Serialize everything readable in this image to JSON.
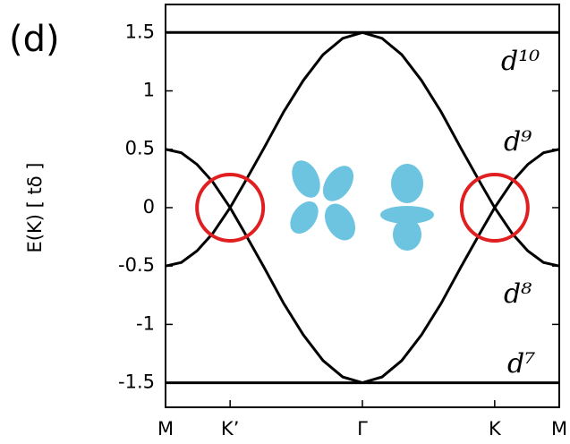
{
  "chart_data": {
    "type": "line",
    "panel_label": "(d)",
    "y_label": "E(K) [ tδ ]",
    "xlim": [
      0,
      1
    ],
    "ylim": [
      -1.71,
      1.74
    ],
    "xticks": [
      {
        "value": 0,
        "label": "M"
      },
      {
        "value": 0.164,
        "label": "K’"
      },
      {
        "value": 0.5,
        "label": "Γ"
      },
      {
        "value": 0.836,
        "label": "K"
      },
      {
        "value": 1,
        "label": "M"
      }
    ],
    "yticks": [
      {
        "value": 1.5,
        "label": "1.5"
      },
      1,
      0.5,
      0,
      -0.5,
      -1,
      -1.5
    ],
    "line_color": "#000000",
    "series": [
      {
        "x": [
          0,
          1
        ],
        "values": [
          1.5,
          1.5
        ]
      },
      {
        "x": [
          0,
          0.04,
          0.08,
          0.12,
          0.164,
          0.2,
          0.25,
          0.3,
          0.35,
          0.4,
          0.45,
          0.5,
          0.55,
          0.6,
          0.65,
          0.7,
          0.75,
          0.8,
          0.836,
          0.88,
          0.92,
          0.96,
          1
        ],
        "values": [
          -0.5,
          -0.47,
          -0.37,
          -0.22,
          0,
          0.21,
          0.51,
          0.82,
          1.09,
          1.31,
          1.45,
          1.5,
          1.45,
          1.31,
          1.09,
          0.82,
          0.51,
          0.21,
          0,
          -0.22,
          -0.37,
          -0.47,
          -0.5
        ]
      },
      {
        "x": [
          0,
          0.04,
          0.08,
          0.12,
          0.164,
          0.2,
          0.25,
          0.3,
          0.35,
          0.4,
          0.45,
          0.5,
          0.55,
          0.6,
          0.65,
          0.7,
          0.75,
          0.8,
          0.836,
          0.88,
          0.92,
          0.96,
          1
        ],
        "values": [
          0.5,
          0.47,
          0.37,
          0.22,
          0,
          -0.21,
          -0.51,
          -0.82,
          -1.09,
          -1.31,
          -1.45,
          -1.5,
          -1.45,
          -1.31,
          -1.09,
          -0.82,
          -0.51,
          -0.21,
          0,
          0.22,
          0.37,
          0.47,
          0.5
        ]
      },
      {
        "x": [
          0,
          1
        ],
        "values": [
          -1.5,
          -1.5
        ]
      }
    ],
    "annotations": [
      "d¹⁰",
      "d⁹",
      "d⁸",
      "d⁷"
    ],
    "circle_color": "#e02020",
    "orbital_color": "#6cc4e0"
  }
}
